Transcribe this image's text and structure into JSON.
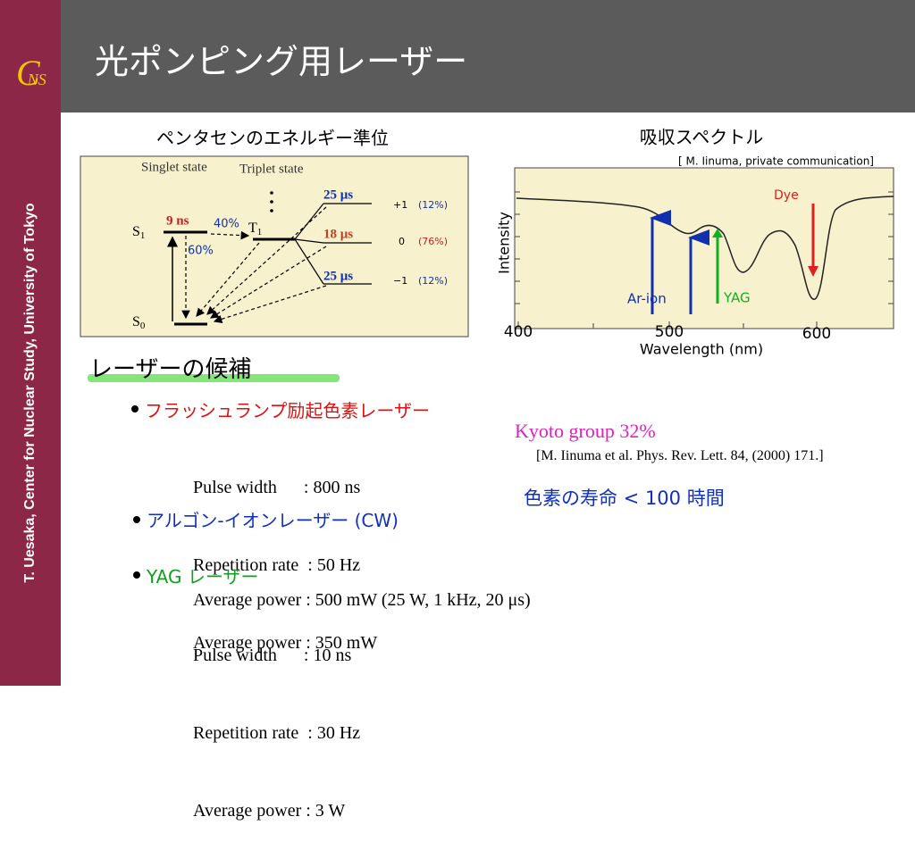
{
  "sidebar": {
    "logo": {
      "main": "C",
      "sub": "NS"
    },
    "caption": "T. Uesaka, Center for Nuclear Study, University of Tokyo"
  },
  "header": {
    "title": "光ポンピング用レーザー"
  },
  "energy_diagram": {
    "title": "ペンタセンのエネルギー準位",
    "singlet_label": "Singlet state",
    "triplet_label": "Triplet state",
    "s1": {
      "symbol": "S",
      "index": "1"
    },
    "s0": {
      "symbol": "S",
      "index": "0"
    },
    "t1": {
      "symbol": "T",
      "index": "1"
    },
    "s1_lifetime": "9 ns",
    "isc_ratio": "40%",
    "decay_ratio": "60%",
    "sublevels": [
      {
        "lifetime": "25 μs",
        "m": "+1",
        "population": "(12%)"
      },
      {
        "lifetime": "18 μs",
        "m": "0",
        "population": "(76%)"
      },
      {
        "lifetime": "25 μs",
        "m": "−1",
        "population": "(12%)"
      }
    ]
  },
  "spectrum": {
    "title": "吸収スペクトル",
    "citation": "[ M. Iinuma, private communication]",
    "y_label": "Intensity",
    "x_label": "Wavelength (nm)",
    "x_tick_labels": [
      "400",
      "500",
      "600"
    ],
    "markers": {
      "dye": "Dye",
      "ar_ion": "Ar-ion",
      "yag": "YAG"
    }
  },
  "candidates": {
    "heading": "レーザーの候補",
    "items": [
      {
        "name": "フラッシュランプ励起色素レーザー",
        "lines": [
          "Pulse width      : 800 ns",
          "Repetition rate  : 50 Hz",
          "Average power : 350 mW"
        ]
      },
      {
        "name": "アルゴン-イオンレーザー (CW)",
        "lines": [
          "Average power : 500 mW (25 W, 1 kHz, 20 μs)"
        ]
      },
      {
        "name": "YAG レーザー",
        "lines": [
          "Pulse width      : 10 ns",
          "Repetition rate  : 30 Hz",
          "Average power : 3 W"
        ]
      }
    ]
  },
  "notes": {
    "kyoto": "Kyoto group 32%",
    "reference": "[M. Iinuma et al. Phys. Rev. Lett. 84, (2000) 171.]",
    "dye_lifetime": "色素の寿命 < 100 時間"
  }
}
